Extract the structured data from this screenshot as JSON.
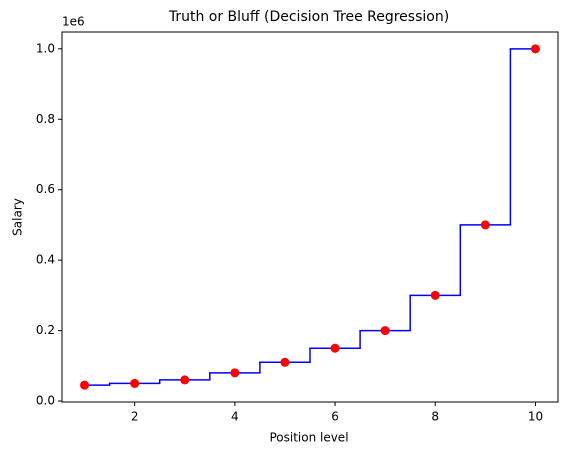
{
  "chart_data": {
    "type": "scatter",
    "title": "Truth or Bluff (Decision Tree Regression)",
    "x_label": "Position level",
    "y_label": "Salary",
    "y_offset_label": "1e6",
    "xlim": [
      0.55,
      10.45
    ],
    "ylim": [
      -0.00275,
      1.04775
    ],
    "xticks": [
      2,
      4,
      6,
      8,
      10
    ],
    "yticks": [
      {
        "value": 0,
        "label": "0.0"
      },
      0.2,
      0.4,
      0.6,
      0.8,
      {
        "value": 1,
        "label": "1.0"
      }
    ],
    "grid": false,
    "series": [
      {
        "kind": "scatter",
        "color": "red",
        "x": [
          1,
          2,
          3,
          4,
          5,
          6,
          7,
          8,
          9,
          10
        ],
        "values": [
          0.045,
          0.05,
          0.06,
          0.08,
          0.11,
          0.15,
          0.2,
          0.3,
          0.5,
          1.0
        ]
      },
      {
        "kind": "line",
        "step": "mid",
        "color": "blue",
        "x": [
          1,
          2,
          3,
          4,
          5,
          6,
          7,
          8,
          9,
          10
        ],
        "values": [
          0.045,
          0.05,
          0.06,
          0.08,
          0.11,
          0.15,
          0.2,
          0.3,
          0.5,
          1.0
        ]
      }
    ]
  }
}
